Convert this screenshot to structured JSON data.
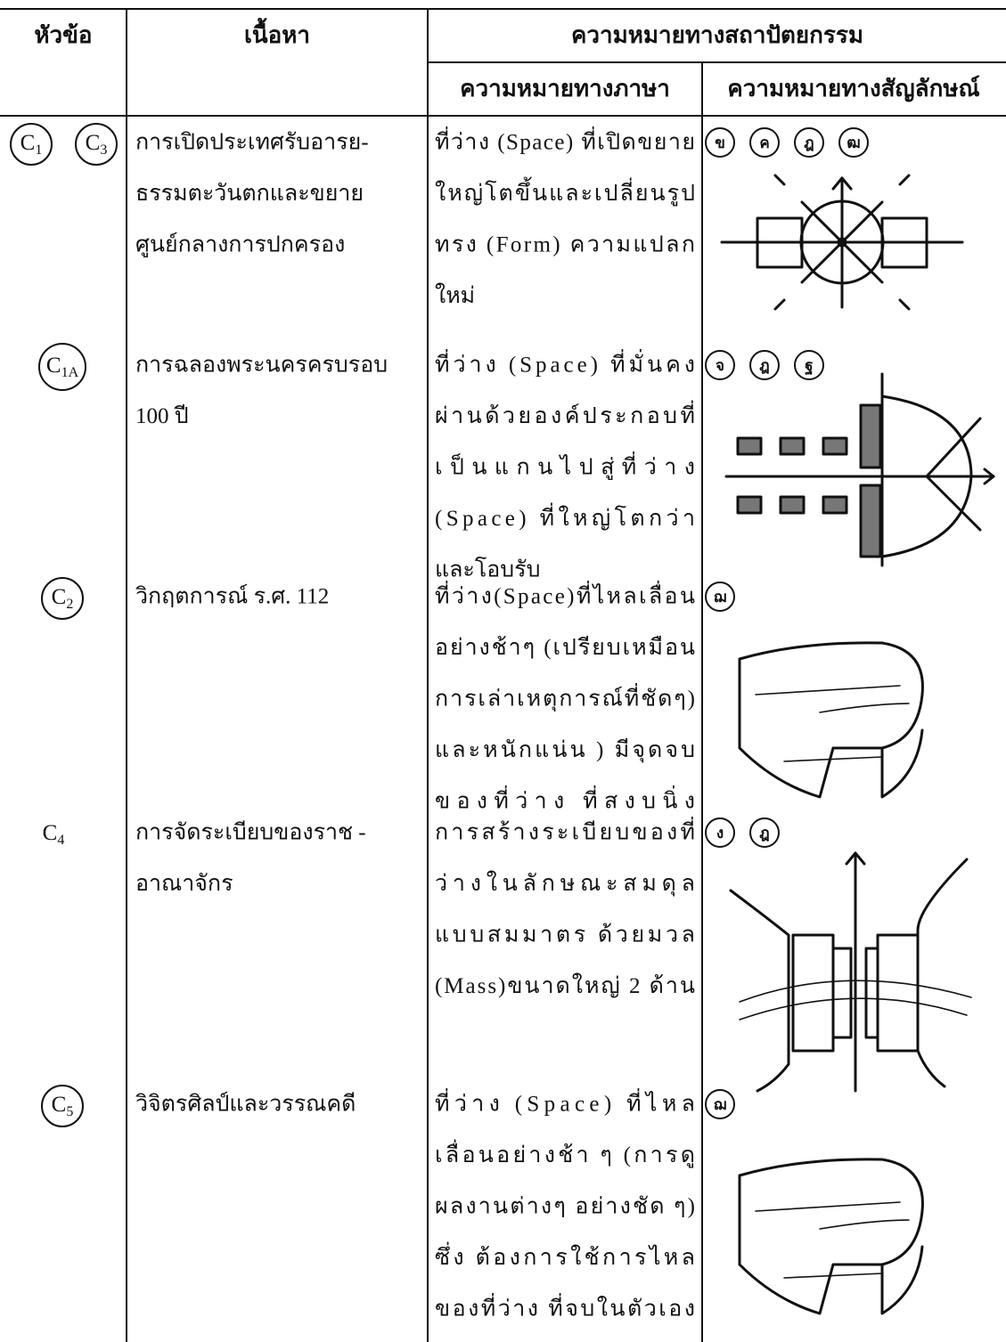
{
  "table": {
    "headers": {
      "topic": "หัวข้อ",
      "content": "เนื้อหา",
      "architectural_meaning": "ความหมายทางสถาปัตยกรรม",
      "linguistic_meaning": "ความหมายทางภาษา",
      "symbolic_meaning": "ความหมายทางสัญลักษณ์"
    },
    "rows": [
      {
        "topics": [
          {
            "base": "C",
            "sub": "1",
            "circled": true
          },
          {
            "base": "C",
            "sub": "3",
            "circled": true
          }
        ],
        "content": [
          "การเปิดประเทศรับอารย-",
          "ธรรมตะวันตกและขยาย",
          "ศูนย์กลางการปกครอง"
        ],
        "linguistic": [
          "ที่ว่าง (Space) ที่เปิดขยาย",
          "ใหญ่โตขึ้นและเปลี่ยนรูป",
          "ทรง (Form) ความแปลก",
          "ใหม่"
        ],
        "symbols": [
          "ข",
          "ค",
          "ฎ",
          "ฒ"
        ]
      },
      {
        "topics": [
          {
            "base": "C",
            "sub": "1A",
            "circled": true
          }
        ],
        "content": [
          "การฉลองพระนครครบรอบ",
          "100 ปี"
        ],
        "linguistic": [
          "ที่ว่าง (Space) ที่มั่นคง",
          "ผ่านด้วยองค์ประกอบที่",
          "เป็นแกนไปสู่ที่ว่าง",
          "(Space) ที่ใหญ่โตกว่า",
          "และโอบรับ"
        ],
        "symbols": [
          "จ",
          "ฎ",
          "ฐ"
        ]
      },
      {
        "topics": [
          {
            "base": "C",
            "sub": "2",
            "circled": true
          }
        ],
        "content": [
          "วิกฤตการณ์ ร.ศ. 112"
        ],
        "linguistic": [
          "ที่ว่าง(Space)ที่ไหลเลื่อน",
          "อย่างช้าๆ (เปรียบเหมือน",
          "การเล่าเหตุการณ์ที่ชัดๆ)",
          "และหนักแน่น ) มีจุดจบ",
          "ของที่ว่าง ที่สงบนิ่ง"
        ],
        "symbols": [
          "ฌ"
        ]
      },
      {
        "topics": [
          {
            "base": "C",
            "sub": "4",
            "circled": false
          }
        ],
        "content": [
          "การจัดระเบียบของราช -",
          "อาณาจักร"
        ],
        "linguistic": [
          "การสร้างระเบียบของที่",
          "ว่างในลักษณะสมดุล",
          "แบบสมมาตร ด้วยมวล",
          "(Mass)ขนาดใหญ่ 2 ด้าน"
        ],
        "symbols": [
          "ง",
          "ฎ"
        ]
      },
      {
        "topics": [
          {
            "base": "C",
            "sub": "5",
            "circled": true
          }
        ],
        "content": [
          "วิจิตรศิลป์และวรรณคดี"
        ],
        "linguistic": [
          "ที่ว่าง (Space) ที่ไหล",
          "เลื่อนอย่างช้า ๆ (การดู",
          "ผลงานต่างๆ อย่างชัด ๆ)",
          "ซึ่ง ต้องการใช้การไหล",
          "ของที่ว่าง ที่จบในตัวเอง"
        ],
        "symbols": [
          "ฌ"
        ]
      }
    ]
  }
}
